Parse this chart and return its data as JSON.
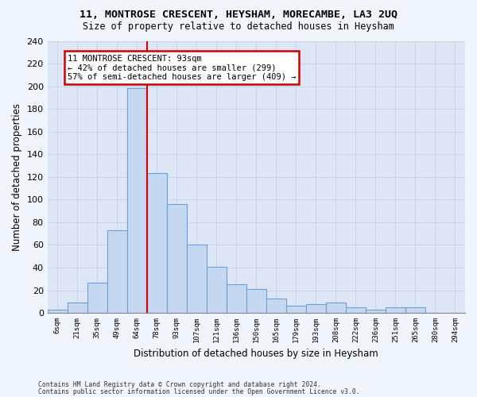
{
  "title": "11, MONTROSE CRESCENT, HEYSHAM, MORECAMBE, LA3 2UQ",
  "subtitle": "Size of property relative to detached houses in Heysham",
  "xlabel": "Distribution of detached houses by size in Heysham",
  "ylabel": "Number of detached properties",
  "categories": [
    "6sqm",
    "21sqm",
    "35sqm",
    "49sqm",
    "64sqm",
    "78sqm",
    "93sqm",
    "107sqm",
    "121sqm",
    "136sqm",
    "150sqm",
    "165sqm",
    "179sqm",
    "193sqm",
    "208sqm",
    "222sqm",
    "236sqm",
    "251sqm",
    "265sqm",
    "280sqm",
    "294sqm"
  ],
  "values": [
    3,
    9,
    27,
    73,
    198,
    123,
    96,
    60,
    41,
    25,
    21,
    13,
    6,
    8,
    9,
    5,
    3,
    5,
    5,
    0,
    0
  ],
  "bar_color": "#c5d8f0",
  "bar_edge_color": "#6a9fd8",
  "vline_index": 5,
  "annotation_title": "11 MONTROSE CRESCENT: 93sqm",
  "annotation_line1": "← 42% of detached houses are smaller (299)",
  "annotation_line2": "57% of semi-detached houses are larger (409) →",
  "vline_color": "#cc0000",
  "annotation_box_color": "#ffffff",
  "annotation_box_edge_color": "#cc0000",
  "plot_bg_color": "#dce6f5",
  "fig_bg_color": "#f0f4fc",
  "grid_color": "#c8d4e8",
  "ylim": [
    0,
    240
  ],
  "yticks": [
    0,
    20,
    40,
    60,
    80,
    100,
    120,
    140,
    160,
    180,
    200,
    220,
    240
  ],
  "footer_line1": "Contains HM Land Registry data © Crown copyright and database right 2024.",
  "footer_line2": "Contains public sector information licensed under the Open Government Licence v3.0."
}
